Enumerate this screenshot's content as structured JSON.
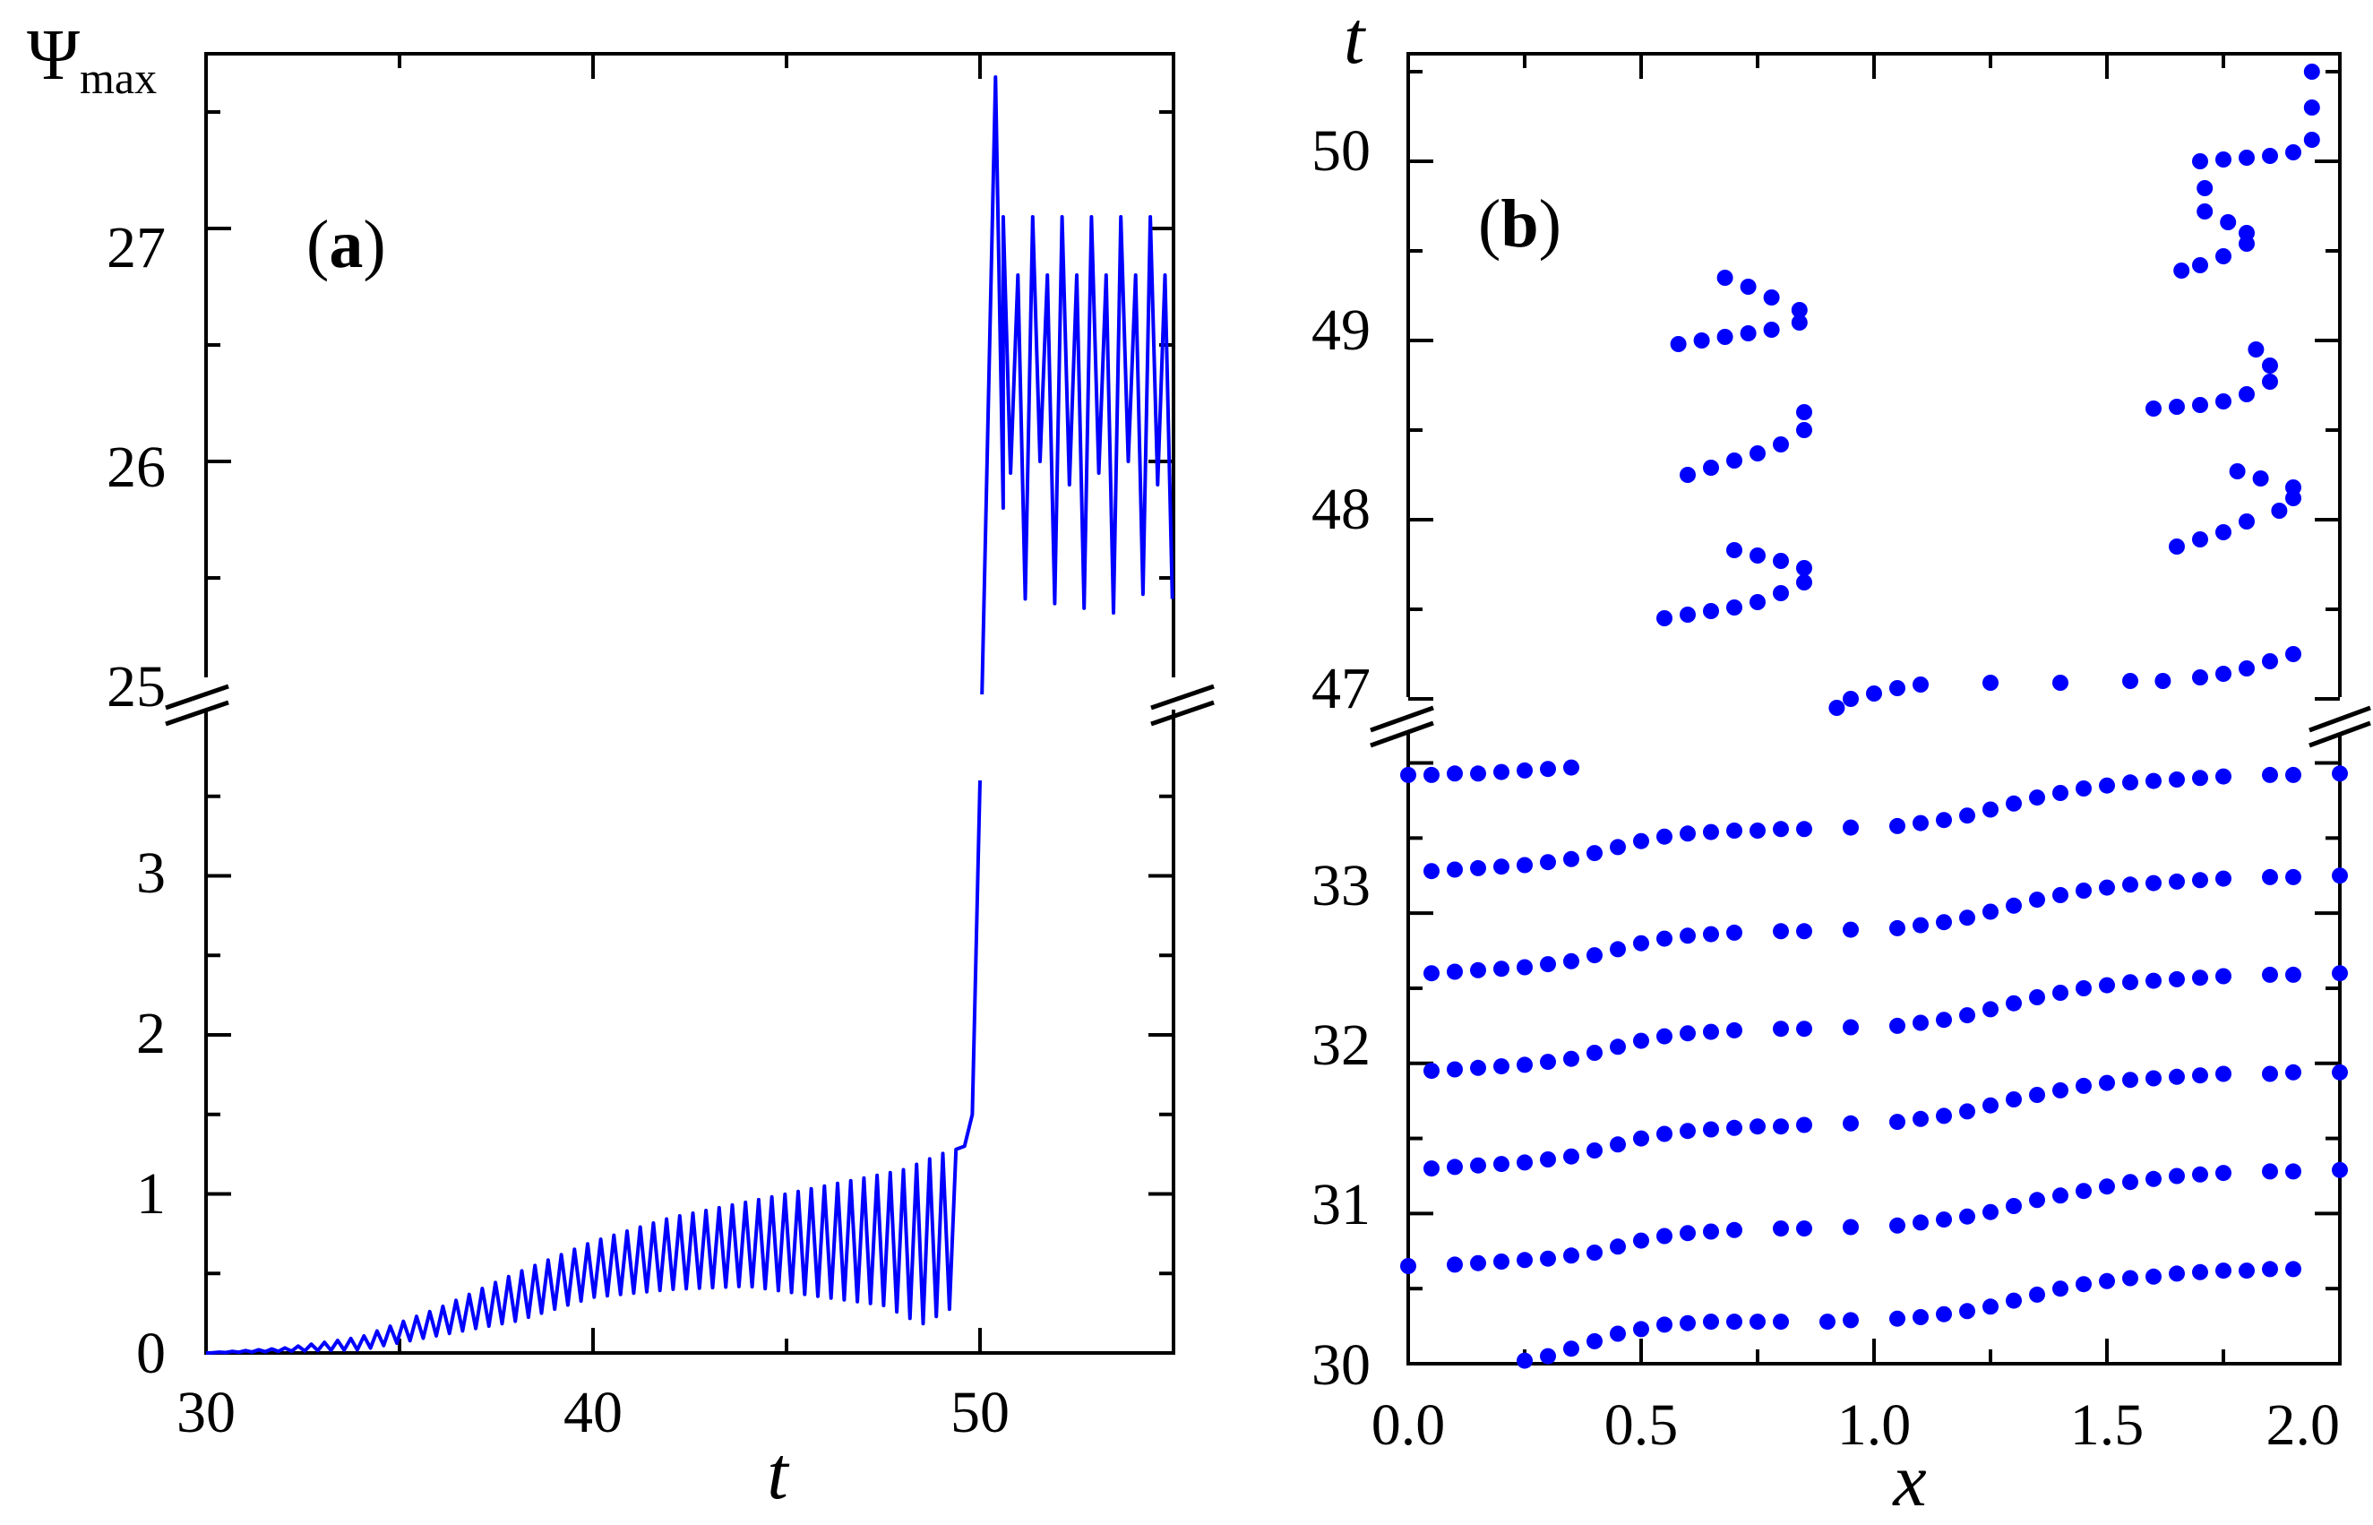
{
  "chart_data": [
    {
      "type": "line",
      "panel": "(a)",
      "panel_letter": "a",
      "panel_open": "(",
      "panel_close": ")",
      "title": "",
      "xlabel": "t",
      "ylabel_main": "Ψ",
      "ylabel_sub": "max",
      "xlim": [
        30,
        55
      ],
      "ylim_lower": [
        0,
        4
      ],
      "ylim_upper": [
        25,
        27.75
      ],
      "broken_y_axis": true,
      "x_ticks": [
        "30",
        "40",
        "50"
      ],
      "y_ticks_lower": [
        "0",
        "1",
        "2",
        "3"
      ],
      "y_ticks_upper": [
        "25",
        "26",
        "27"
      ],
      "series": [
        {
          "name": "Psi_max",
          "color": "#0000ff",
          "description": "small oscillation growing from 0 (t=30) to ~0.5–1.3 (t=49.5), jump at t≈50 to ~27.6, then oscillation between ~25.4 and ~27.1 until t=55",
          "envelope_early": [
            [
              30,
              0
            ],
            [
              32,
              0.03
            ],
            [
              34,
              0.1
            ],
            [
              36,
              0.28
            ],
            [
              38,
              0.5
            ],
            [
              40,
              0.7
            ],
            [
              42,
              0.85
            ],
            [
              44,
              0.95
            ],
            [
              46,
              1.05
            ],
            [
              48,
              1.15
            ],
            [
              49.3,
              1.28
            ]
          ],
          "trough_early": [
            [
              30,
              0
            ],
            [
              34,
              0.02
            ],
            [
              38,
              0.2
            ],
            [
              40,
              0.35
            ],
            [
              42,
              0.4
            ],
            [
              44,
              0.42
            ],
            [
              46,
              0.35
            ],
            [
              47.5,
              0.3
            ],
            [
              48.5,
              0.18
            ],
            [
              49.4,
              0.3
            ]
          ],
          "jump": [
            [
              49.6,
              1.3
            ],
            [
              49.8,
              1.5
            ],
            [
              50.0,
              3.6
            ],
            [
              50.05,
              25.0
            ],
            [
              50.4,
              27.65
            ],
            [
              50.6,
              25.8
            ]
          ],
          "late_range": [
            25.35,
            27.1
          ],
          "late_t_range": [
            50.6,
            55
          ]
        }
      ]
    },
    {
      "type": "scatter",
      "panel": "(b)",
      "panel_letter": "b",
      "panel_open": "(",
      "panel_close": ")",
      "title": "",
      "xlabel": "x",
      "ylabel": "t",
      "xlim": [
        0,
        2
      ],
      "ylim_lower": [
        30,
        34.2
      ],
      "ylim_upper": [
        46.9,
        50.6
      ],
      "broken_y_axis": true,
      "x_ticks": [
        "0.0",
        "0.5",
        "1.0",
        "1.5",
        "2.0"
      ],
      "y_ticks_lower": [
        "30",
        "31",
        "32",
        "33"
      ],
      "y_ticks_upper": [
        "47",
        "48",
        "49",
        "50"
      ],
      "marker_color": "#0000ff",
      "series": [
        {
          "name": "band-30.0",
          "x": [
            0.25,
            0.3,
            0.35,
            0.4,
            0.45,
            0.5,
            0.55,
            0.6,
            0.65,
            0.7,
            0.75,
            0.8,
            0.9,
            0.95,
            1.05,
            1.1,
            1.15,
            1.2,
            1.25,
            1.3,
            1.35,
            1.4,
            1.45,
            1.5,
            1.55,
            1.6,
            1.65,
            1.7,
            1.75,
            1.8,
            1.85,
            1.9
          ],
          "y": [
            30.02,
            30.05,
            30.1,
            30.15,
            30.2,
            30.23,
            30.26,
            30.27,
            30.28,
            30.28,
            30.28,
            30.28,
            30.28,
            30.29,
            30.3,
            30.31,
            30.33,
            30.35,
            30.38,
            30.42,
            30.46,
            30.5,
            30.53,
            30.55,
            30.57,
            30.58,
            30.6,
            30.61,
            30.62,
            30.62,
            30.63,
            30.63
          ]
        },
        {
          "name": "band-30.6",
          "x": [
            0.0,
            0.1,
            0.15,
            0.2,
            0.25,
            0.3,
            0.35,
            0.4,
            0.45,
            0.5,
            0.55,
            0.6,
            0.65,
            0.7,
            0.8,
            0.85,
            0.95,
            1.05,
            1.1,
            1.15,
            1.2,
            1.25,
            1.3,
            1.35,
            1.4,
            1.45,
            1.5,
            1.55,
            1.6,
            1.65,
            1.7,
            1.75,
            1.85,
            1.9,
            2.0
          ],
          "y": [
            30.65,
            30.66,
            30.67,
            30.68,
            30.69,
            30.7,
            30.72,
            30.74,
            30.78,
            30.82,
            30.85,
            30.87,
            30.88,
            30.89,
            30.9,
            30.9,
            30.91,
            30.92,
            30.94,
            30.96,
            30.98,
            31.01,
            31.05,
            31.09,
            31.12,
            31.15,
            31.18,
            31.21,
            31.23,
            31.25,
            31.26,
            31.27,
            31.28,
            31.28,
            31.29
          ]
        },
        {
          "name": "band-31.3",
          "x": [
            0.05,
            0.1,
            0.15,
            0.2,
            0.25,
            0.3,
            0.35,
            0.4,
            0.45,
            0.5,
            0.55,
            0.6,
            0.65,
            0.7,
            0.75,
            0.8,
            0.85,
            0.95,
            1.05,
            1.1,
            1.15,
            1.2,
            1.25,
            1.3,
            1.35,
            1.4,
            1.45,
            1.5,
            1.55,
            1.6,
            1.65,
            1.7,
            1.75,
            1.85,
            1.9,
            2.0
          ],
          "y": [
            31.3,
            31.31,
            31.32,
            31.33,
            31.34,
            31.36,
            31.38,
            31.42,
            31.46,
            31.5,
            31.53,
            31.55,
            31.56,
            31.57,
            31.58,
            31.58,
            31.59,
            31.6,
            31.61,
            31.63,
            31.65,
            31.68,
            31.72,
            31.76,
            31.79,
            31.82,
            31.85,
            31.87,
            31.89,
            31.9,
            31.91,
            31.92,
            31.93,
            31.93,
            31.94,
            31.94
          ]
        },
        {
          "name": "band-31.95",
          "x": [
            0.05,
            0.1,
            0.15,
            0.2,
            0.25,
            0.3,
            0.35,
            0.4,
            0.45,
            0.5,
            0.55,
            0.6,
            0.65,
            0.7,
            0.8,
            0.85,
            0.95,
            1.05,
            1.1,
            1.15,
            1.2,
            1.25,
            1.3,
            1.35,
            1.4,
            1.45,
            1.5,
            1.55,
            1.6,
            1.65,
            1.7,
            1.75,
            1.85,
            1.9,
            2.0
          ],
          "y": [
            31.95,
            31.96,
            31.97,
            31.98,
            31.99,
            32.01,
            32.03,
            32.07,
            32.11,
            32.15,
            32.18,
            32.2,
            32.21,
            32.22,
            32.23,
            32.23,
            32.24,
            32.25,
            32.27,
            32.29,
            32.32,
            32.36,
            32.4,
            32.44,
            32.47,
            32.5,
            32.52,
            32.54,
            32.55,
            32.56,
            32.57,
            32.58,
            32.59,
            32.59,
            32.6
          ]
        },
        {
          "name": "band-32.6",
          "x": [
            0.05,
            0.1,
            0.15,
            0.2,
            0.25,
            0.3,
            0.35,
            0.4,
            0.45,
            0.5,
            0.55,
            0.6,
            0.65,
            0.7,
            0.8,
            0.85,
            0.95,
            1.05,
            1.1,
            1.15,
            1.2,
            1.25,
            1.3,
            1.35,
            1.4,
            1.45,
            1.5,
            1.55,
            1.6,
            1.65,
            1.7,
            1.75,
            1.85,
            1.9,
            2.0
          ],
          "y": [
            32.6,
            32.61,
            32.62,
            32.63,
            32.64,
            32.66,
            32.68,
            32.72,
            32.76,
            32.8,
            32.83,
            32.85,
            32.86,
            32.87,
            32.88,
            32.88,
            32.89,
            32.9,
            32.92,
            32.94,
            32.97,
            33.01,
            33.05,
            33.09,
            33.12,
            33.15,
            33.17,
            33.19,
            33.2,
            33.21,
            33.22,
            33.23,
            33.24,
            33.24,
            33.25
          ]
        },
        {
          "name": "band-33.3",
          "x": [
            0.05,
            0.1,
            0.15,
            0.2,
            0.25,
            0.3,
            0.35,
            0.4,
            0.45,
            0.5,
            0.55,
            0.6,
            0.65,
            0.7,
            0.75,
            0.8,
            0.85,
            0.95,
            1.05,
            1.1,
            1.15,
            1.2,
            1.25,
            1.3,
            1.35,
            1.4,
            1.45,
            1.5,
            1.55,
            1.6,
            1.65,
            1.7,
            1.75,
            1.85,
            1.9,
            2.0
          ],
          "y": [
            33.28,
            33.29,
            33.3,
            33.31,
            33.32,
            33.34,
            33.36,
            33.4,
            33.44,
            33.48,
            33.51,
            33.53,
            33.54,
            33.55,
            33.55,
            33.56,
            33.56,
            33.57,
            33.58,
            33.6,
            33.62,
            33.65,
            33.69,
            33.73,
            33.77,
            33.8,
            33.83,
            33.85,
            33.87,
            33.88,
            33.89,
            33.9,
            33.91,
            33.92,
            33.92,
            33.93
          ]
        },
        {
          "name": "band-33.9",
          "x": [
            0.0,
            0.05,
            0.1,
            0.15,
            0.2,
            0.25,
            0.3,
            0.35
          ],
          "y": [
            33.92,
            33.92,
            33.93,
            33.93,
            33.94,
            33.95,
            33.96,
            33.97
          ]
        },
        {
          "name": "band-47.0",
          "x": [
            0.92,
            0.95,
            1.0,
            1.05,
            1.1,
            1.25,
            1.4,
            1.55,
            1.62,
            1.7,
            1.75,
            1.8,
            1.85,
            1.9
          ],
          "y": [
            46.95,
            47.0,
            47.03,
            47.06,
            47.08,
            47.09,
            47.09,
            47.1,
            47.1,
            47.12,
            47.14,
            47.17,
            47.21,
            47.25
          ]
        },
        {
          "name": "loop-left-47.5",
          "x": [
            0.55,
            0.6,
            0.65,
            0.7,
            0.75,
            0.8,
            0.85,
            0.85,
            0.8,
            0.75,
            0.7
          ],
          "y": [
            47.45,
            47.47,
            47.49,
            47.51,
            47.54,
            47.59,
            47.65,
            47.73,
            47.77,
            47.8,
            47.83
          ]
        },
        {
          "name": "loop-left-48.3",
          "x": [
            0.6,
            0.65,
            0.7,
            0.75,
            0.8,
            0.85,
            0.85
          ],
          "y": [
            48.25,
            48.29,
            48.33,
            48.37,
            48.42,
            48.5,
            48.6
          ]
        },
        {
          "name": "loop-left-49.0",
          "x": [
            0.58,
            0.63,
            0.68,
            0.73,
            0.78,
            0.84,
            0.84,
            0.78,
            0.73,
            0.68
          ],
          "y": [
            48.98,
            49.0,
            49.02,
            49.04,
            49.06,
            49.1,
            49.17,
            49.24,
            49.3,
            49.35
          ]
        },
        {
          "name": "loop-right-47.9",
          "x": [
            1.65,
            1.7,
            1.75,
            1.8,
            1.87,
            1.9,
            1.9,
            1.83,
            1.78
          ],
          "y": [
            47.85,
            47.89,
            47.93,
            47.99,
            48.05,
            48.12,
            48.18,
            48.23,
            48.27
          ]
        },
        {
          "name": "loop-right-48.6",
          "x": [
            1.6,
            1.65,
            1.7,
            1.75,
            1.8,
            1.85,
            1.85,
            1.82
          ],
          "y": [
            48.62,
            48.63,
            48.64,
            48.66,
            48.7,
            48.77,
            48.86,
            48.95
          ]
        },
        {
          "name": "loop-right-49.5",
          "x": [
            1.66,
            1.7,
            1.75,
            1.8,
            1.8,
            1.76,
            1.71,
            1.71
          ],
          "y": [
            49.39,
            49.42,
            49.47,
            49.54,
            49.6,
            49.66,
            49.72,
            49.85
          ]
        },
        {
          "name": "loop-right-50.0",
          "x": [
            1.7,
            1.75,
            1.8,
            1.85,
            1.9,
            1.94,
            1.94,
            1.94
          ],
          "y": [
            50.0,
            50.01,
            50.02,
            50.03,
            50.05,
            50.12,
            50.3,
            50.5
          ]
        }
      ]
    }
  ]
}
